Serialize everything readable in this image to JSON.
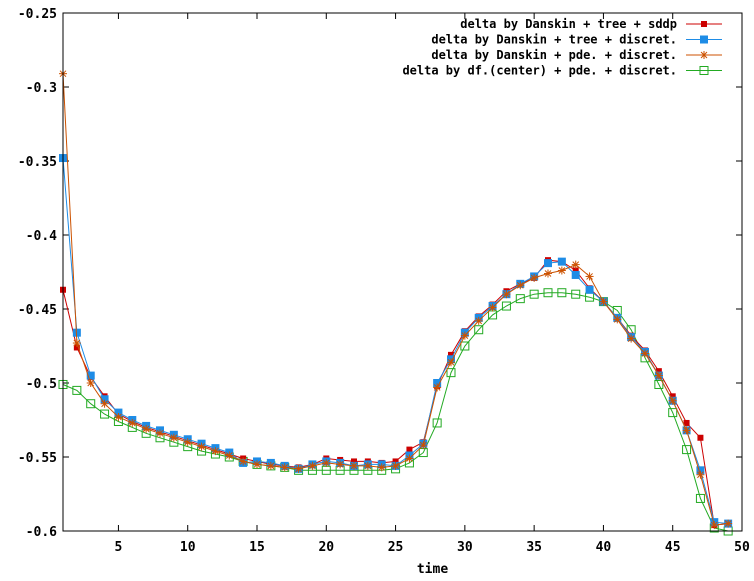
{
  "chart_data": {
    "type": "line",
    "title": "",
    "xlabel": "time",
    "ylabel": "",
    "xlim": [
      1,
      50
    ],
    "ylim": [
      -0.6,
      -0.25
    ],
    "xticks": [
      5,
      10,
      15,
      20,
      25,
      30,
      35,
      40,
      45,
      50
    ],
    "yticks": [
      -0.6,
      -0.55,
      -0.5,
      -0.45,
      -0.4,
      -0.35,
      -0.3,
      -0.25
    ],
    "xtick_labels": [
      "5",
      "10",
      "15",
      "20",
      "25",
      "30",
      "35",
      "40",
      "45",
      "50"
    ],
    "ytick_labels": [
      "-0.6",
      "-0.55",
      "-0.5",
      "-0.45",
      "-0.4",
      "-0.35",
      "-0.3",
      "-0.25"
    ],
    "grid": false,
    "legend_position": "top-right",
    "x": [
      1,
      2,
      3,
      4,
      5,
      6,
      7,
      8,
      9,
      10,
      11,
      12,
      13,
      14,
      15,
      16,
      17,
      18,
      19,
      20,
      21,
      22,
      23,
      24,
      25,
      26,
      27,
      28,
      29,
      30,
      31,
      32,
      33,
      34,
      35,
      36,
      37,
      38,
      39,
      40,
      41,
      42,
      43,
      44,
      45,
      46,
      47,
      48,
      49
    ],
    "series": [
      {
        "name": "delta by Danskin + tree + sddp",
        "color": "#cc0000",
        "marker": "filled-circle",
        "values": [
          -0.437,
          -0.476,
          -0.496,
          -0.509,
          -0.521,
          -0.526,
          -0.53,
          -0.533,
          -0.536,
          -0.539,
          -0.542,
          -0.545,
          -0.548,
          -0.551,
          -0.553,
          -0.555,
          -0.556,
          -0.557,
          -0.555,
          -0.551,
          -0.552,
          -0.553,
          -0.553,
          -0.554,
          -0.553,
          -0.545,
          -0.54,
          -0.502,
          -0.481,
          -0.465,
          -0.455,
          -0.447,
          -0.438,
          -0.433,
          -0.429,
          -0.417,
          -0.418,
          -0.424,
          -0.436,
          -0.445,
          -0.456,
          -0.468,
          -0.478,
          -0.492,
          -0.509,
          -0.527,
          -0.537,
          -0.596,
          -0.595
        ]
      },
      {
        "name": "delta by Danskin + tree + discret.",
        "color": "#1e8ce6",
        "marker": "filled-square",
        "values": [
          -0.348,
          -0.466,
          -0.495,
          -0.511,
          -0.52,
          -0.525,
          -0.529,
          -0.532,
          -0.535,
          -0.538,
          -0.541,
          -0.544,
          -0.547,
          -0.554,
          -0.553,
          -0.554,
          -0.556,
          -0.558,
          -0.555,
          -0.553,
          -0.554,
          -0.556,
          -0.555,
          -0.555,
          -0.556,
          -0.549,
          -0.541,
          -0.5,
          -0.484,
          -0.466,
          -0.456,
          -0.448,
          -0.44,
          -0.433,
          -0.428,
          -0.419,
          -0.418,
          -0.427,
          -0.437,
          -0.445,
          -0.456,
          -0.469,
          -0.479,
          -0.495,
          -0.512,
          -0.532,
          -0.559,
          -0.594,
          -0.595
        ]
      },
      {
        "name": "delta by Danskin + pde. + discret.",
        "color": "#cc5200",
        "marker": "asterisk",
        "values": [
          -0.291,
          -0.473,
          -0.5,
          -0.514,
          -0.523,
          -0.527,
          -0.531,
          -0.534,
          -0.537,
          -0.54,
          -0.543,
          -0.546,
          -0.549,
          -0.553,
          -0.555,
          -0.556,
          -0.557,
          -0.558,
          -0.556,
          -0.554,
          -0.555,
          -0.556,
          -0.556,
          -0.557,
          -0.556,
          -0.551,
          -0.542,
          -0.503,
          -0.486,
          -0.468,
          -0.458,
          -0.449,
          -0.44,
          -0.434,
          -0.429,
          -0.426,
          -0.424,
          -0.42,
          -0.428,
          -0.445,
          -0.457,
          -0.47,
          -0.48,
          -0.495,
          -0.512,
          -0.532,
          -0.562,
          -0.596,
          -0.595
        ]
      },
      {
        "name": "delta by df.(center) + pde. + discret.",
        "color": "#22aa22",
        "marker": "open-square",
        "values": [
          -0.501,
          -0.505,
          -0.514,
          -0.521,
          -0.526,
          -0.53,
          -0.534,
          -0.537,
          -0.54,
          -0.543,
          -0.546,
          -0.548,
          -0.55,
          -0.553,
          -0.555,
          -0.556,
          -0.557,
          -0.559,
          -0.559,
          -0.559,
          -0.559,
          -0.559,
          -0.559,
          -0.559,
          -0.558,
          -0.554,
          -0.547,
          -0.527,
          -0.493,
          -0.475,
          -0.464,
          -0.454,
          -0.448,
          -0.443,
          -0.44,
          -0.439,
          -0.439,
          -0.44,
          -0.442,
          -0.445,
          -0.451,
          -0.464,
          -0.483,
          -0.501,
          -0.52,
          -0.545,
          -0.578,
          -0.598,
          -0.6
        ]
      }
    ]
  }
}
